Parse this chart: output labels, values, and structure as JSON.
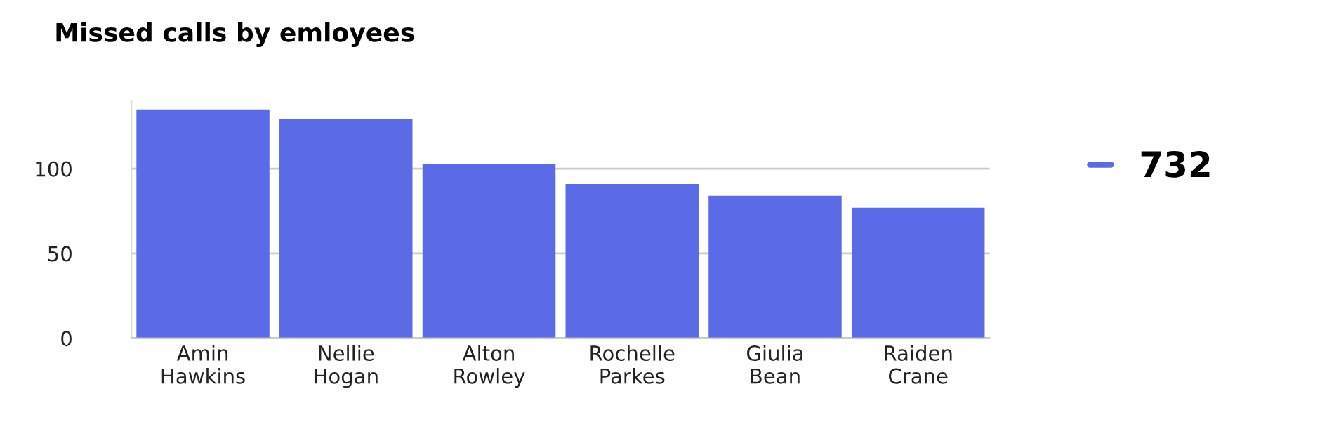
{
  "chart_data": {
    "type": "bar",
    "title": "Missed calls by emloyees",
    "categories": [
      "Amin\nHawkins",
      "Nellie\nHogan",
      "Alton\nRowley",
      "Rochelle\nParkes",
      "Giulia\nBean",
      "Raiden\nCrane"
    ],
    "series": [
      {
        "name": "732",
        "color": "#5b6be8",
        "values": [
          135,
          129,
          103,
          91,
          84,
          77
        ]
      }
    ],
    "ylim": [
      0,
      140
    ],
    "yticks": [
      0,
      50,
      100
    ],
    "grid": "y",
    "legend": "right"
  }
}
